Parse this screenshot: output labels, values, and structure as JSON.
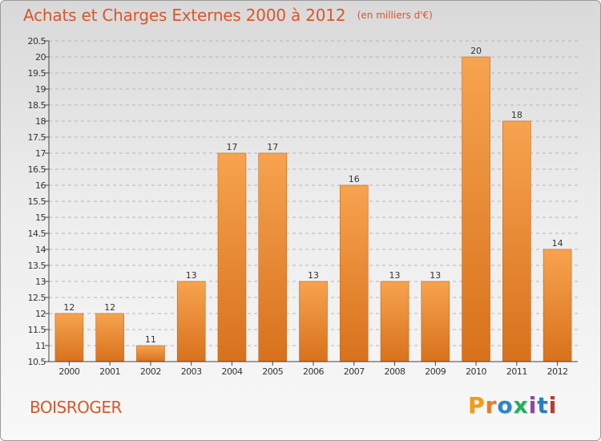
{
  "page": {
    "title": "Achats et Charges Externes 2000 à 2012",
    "unit": "(en milliers d'€)",
    "town": "BOISROGER",
    "brand": "Proxiti"
  },
  "colors": {
    "title": "#d9562a",
    "bar_light": "#f7a34f",
    "bar_dark": "#d8711c",
    "axis": "#444444",
    "grid": "#b5b5b5",
    "brand_letters": [
      "#f39c12",
      "#e67e22",
      "#2e86c1",
      "#27ae60",
      "#8e44ad",
      "#2980b9",
      "#c0392b"
    ]
  },
  "chart_data": {
    "type": "bar",
    "title": "Achats et Charges Externes 2000 à 2012",
    "subtitle": "(en milliers d'€)",
    "xlabel": "",
    "ylabel": "",
    "categories": [
      "2000",
      "2001",
      "2002",
      "2003",
      "2004",
      "2005",
      "2006",
      "2007",
      "2008",
      "2009",
      "2010",
      "2011",
      "2012"
    ],
    "values": [
      12,
      12,
      11,
      13,
      17,
      17,
      13,
      16,
      13,
      13,
      20,
      18,
      14
    ],
    "value_labels": [
      "12",
      "12",
      "11",
      "13",
      "17",
      "17",
      "13",
      "16",
      "13",
      "13",
      "20",
      "18",
      "14"
    ],
    "ylim": [
      10.5,
      20.5
    ],
    "yticks": [
      "10.5",
      "11",
      "11.5",
      "12",
      "12.5",
      "13",
      "13.5",
      "14",
      "14.5",
      "15",
      "15.5",
      "16",
      "16.5",
      "17",
      "17.5",
      "18",
      "18.5",
      "19",
      "19.5",
      "20",
      "20.5"
    ],
    "grid": true,
    "legend": "none"
  }
}
